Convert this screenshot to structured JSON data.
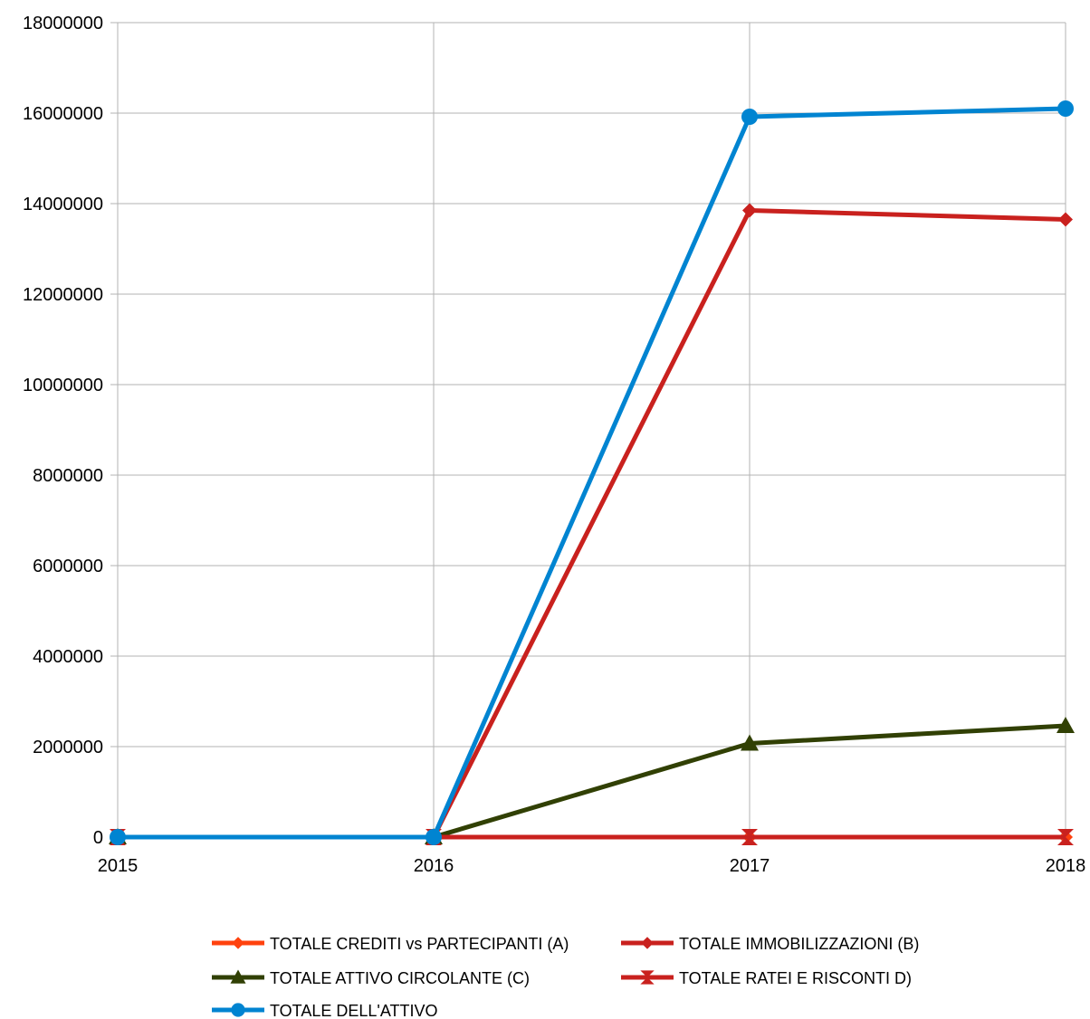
{
  "chart_data": {
    "type": "line",
    "categories": [
      "2015",
      "2016",
      "2017",
      "2018"
    ],
    "ylim": [
      0,
      18000000
    ],
    "yticks": [
      "0",
      "2000000",
      "4000000",
      "6000000",
      "8000000",
      "10000000",
      "12000000",
      "14000000",
      "16000000",
      "18000000"
    ],
    "grid": true,
    "legend_position": "bottom",
    "series": [
      {
        "name": "TOTALE CREDITI vs PARTECIPANTI (A)",
        "color": "#ff420e",
        "marker": "diamond",
        "values": [
          0,
          0,
          0,
          0
        ]
      },
      {
        "name": "TOTALE IMMOBILIZZAZIONI (B)",
        "color": "#c9211e",
        "marker": "diamond",
        "values": [
          0,
          0,
          13850000,
          13650000
        ]
      },
      {
        "name": "TOTALE ATTIVO CIRCOLANTE (C)",
        "color": "#314004",
        "marker": "triangle",
        "values": [
          0,
          0,
          2070000,
          2460000
        ]
      },
      {
        "name": "TOTALE RATEI E RISCONTI  D)",
        "color": "#c9211e",
        "marker": "bowtie",
        "values": [
          0,
          0,
          0,
          0
        ]
      },
      {
        "name": "TOTALE DELL'ATTIVO",
        "color": "#0084d1",
        "marker": "circle",
        "values": [
          0,
          0,
          15920000,
          16100000
        ]
      }
    ]
  }
}
